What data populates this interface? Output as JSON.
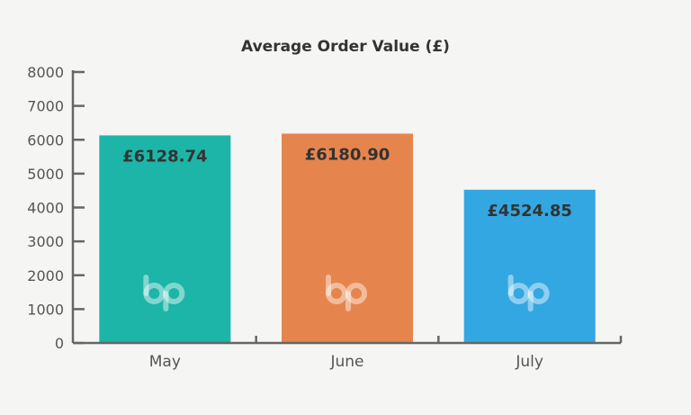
{
  "chart_data": {
    "type": "bar",
    "title": "Average Order Value (£)",
    "xlabel": "",
    "ylabel": "",
    "categories": [
      "May",
      "June",
      "July"
    ],
    "values": [
      6128.74,
      6180.9,
      4524.85
    ],
    "data_labels": [
      "£6128.74",
      "£6180.90",
      "£4524.85"
    ],
    "bar_colors": [
      "#1db5a7",
      "#e5854d",
      "#33a7e2"
    ],
    "ylim": [
      0,
      8000
    ],
    "yticks": [
      "0",
      "1000",
      "2000",
      "3000",
      "4000",
      "5000",
      "6000",
      "7000",
      "8000"
    ],
    "grid": false,
    "legend": "none",
    "watermark_icon": "bp-logo-icon"
  }
}
